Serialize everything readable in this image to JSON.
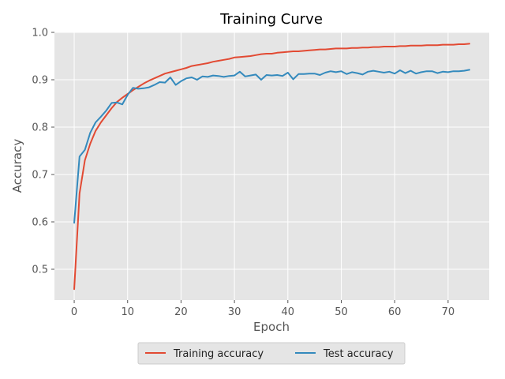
{
  "chart_data": {
    "type": "line",
    "title": "Training Curve",
    "xlabel": "Epoch",
    "ylabel": "Accuracy",
    "xlim": [
      -3.7,
      77.7
    ],
    "ylim": [
      0.435,
      1.0
    ],
    "xticks": [
      0,
      10,
      20,
      30,
      40,
      50,
      60,
      70
    ],
    "yticks": [
      0.5,
      0.6,
      0.7,
      0.8,
      0.9,
      1.0
    ],
    "ytick_labels": [
      "0.5",
      "0.6",
      "0.7",
      "0.8",
      "0.9",
      "1.0"
    ],
    "grid": true,
    "legend_position": "bottom-center",
    "x": [
      0,
      1,
      2,
      3,
      4,
      5,
      6,
      7,
      8,
      9,
      10,
      11,
      12,
      13,
      14,
      15,
      16,
      17,
      18,
      19,
      20,
      21,
      22,
      23,
      24,
      25,
      26,
      27,
      28,
      29,
      30,
      31,
      32,
      33,
      34,
      35,
      36,
      37,
      38,
      39,
      40,
      41,
      42,
      43,
      44,
      45,
      46,
      47,
      48,
      49,
      50,
      51,
      52,
      53,
      54,
      55,
      56,
      57,
      58,
      59,
      60,
      61,
      62,
      63,
      64,
      65,
      66,
      67,
      68,
      69,
      70,
      71,
      72,
      73,
      74
    ],
    "series": [
      {
        "name": "Training accuracy",
        "color": "#E24A33",
        "values": [
          0.458,
          0.66,
          0.73,
          0.765,
          0.792,
          0.81,
          0.825,
          0.84,
          0.853,
          0.862,
          0.87,
          0.878,
          0.885,
          0.892,
          0.898,
          0.903,
          0.908,
          0.913,
          0.916,
          0.919,
          0.922,
          0.925,
          0.929,
          0.931,
          0.933,
          0.935,
          0.938,
          0.94,
          0.942,
          0.944,
          0.947,
          0.948,
          0.949,
          0.95,
          0.952,
          0.954,
          0.955,
          0.955,
          0.957,
          0.958,
          0.959,
          0.96,
          0.96,
          0.961,
          0.962,
          0.963,
          0.964,
          0.964,
          0.965,
          0.966,
          0.966,
          0.966,
          0.967,
          0.967,
          0.968,
          0.968,
          0.969,
          0.969,
          0.97,
          0.97,
          0.97,
          0.971,
          0.971,
          0.972,
          0.972,
          0.972,
          0.973,
          0.973,
          0.973,
          0.974,
          0.974,
          0.974,
          0.975,
          0.975,
          0.976
        ]
      },
      {
        "name": "Test accuracy",
        "color": "#348ABD",
        "values": [
          0.598,
          0.738,
          0.752,
          0.788,
          0.81,
          0.822,
          0.835,
          0.851,
          0.852,
          0.848,
          0.868,
          0.883,
          0.881,
          0.882,
          0.884,
          0.889,
          0.895,
          0.894,
          0.905,
          0.889,
          0.897,
          0.903,
          0.905,
          0.9,
          0.907,
          0.906,
          0.909,
          0.908,
          0.906,
          0.908,
          0.909,
          0.917,
          0.907,
          0.909,
          0.911,
          0.9,
          0.91,
          0.909,
          0.91,
          0.908,
          0.915,
          0.901,
          0.912,
          0.912,
          0.913,
          0.913,
          0.91,
          0.915,
          0.918,
          0.916,
          0.918,
          0.912,
          0.916,
          0.914,
          0.911,
          0.917,
          0.919,
          0.917,
          0.915,
          0.917,
          0.913,
          0.92,
          0.914,
          0.919,
          0.913,
          0.916,
          0.918,
          0.918,
          0.914,
          0.917,
          0.916,
          0.918,
          0.918,
          0.919,
          0.921
        ]
      }
    ]
  }
}
